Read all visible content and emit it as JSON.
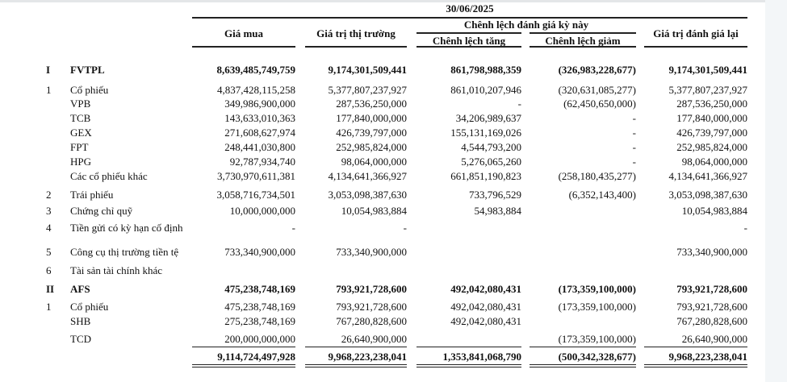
{
  "header": {
    "date": "30/06/2025",
    "col_purchase": "Giá mua",
    "col_market": "Giá trị thị trường",
    "col_diff_group": "Chênh lệch đánh giá kỳ này",
    "col_increase": "Chênh lệch tăng",
    "col_decrease": "Chênh lệch giảm",
    "col_revalued": "Giá trị đánh giá lại"
  },
  "rows": [
    {
      "no": "I",
      "name": "FVTPL",
      "bold": true,
      "values": [
        "8,639,485,749,759",
        "9,174,301,509,441",
        "861,798,988,359",
        "(326,983,228,677)",
        "9,174,301,509,441"
      ]
    },
    {
      "no": "1",
      "name": "Cổ phiếu",
      "values": [
        "4,837,428,115,258",
        "5,377,807,237,927",
        "861,010,207,946",
        "(320,631,085,277)",
        "5,377,807,237,927"
      ]
    },
    {
      "no": "",
      "name": "VPB",
      "values": [
        "349,986,900,000",
        "287,536,250,000",
        "-",
        "(62,450,650,000)",
        "287,536,250,000"
      ]
    },
    {
      "no": "",
      "name": "TCB",
      "values": [
        "143,633,010,363",
        "177,840,000,000",
        "34,206,989,637",
        "-",
        "177,840,000,000"
      ]
    },
    {
      "no": "",
      "name": "GEX",
      "values": [
        "271,608,627,974",
        "426,739,797,000",
        "155,131,169,026",
        "-",
        "426,739,797,000"
      ]
    },
    {
      "no": "",
      "name": "FPT",
      "values": [
        "248,441,030,800",
        "252,985,824,000",
        "4,544,793,200",
        "-",
        "252,985,824,000"
      ]
    },
    {
      "no": "",
      "name": "HPG",
      "values": [
        "92,787,934,740",
        "98,064,000,000",
        "5,276,065,260",
        "-",
        "98,064,000,000"
      ]
    },
    {
      "no": "",
      "name": "Các cổ phiếu khác",
      "values": [
        "3,730,970,611,381",
        "4,134,641,366,927",
        "661,851,190,823",
        "(258,180,435,277)",
        "4,134,641,366,927"
      ]
    },
    {
      "no": "2",
      "name": "Trái phiếu",
      "values": [
        "3,058,716,734,501",
        "3,053,098,387,630",
        "733,796,529",
        "(6,352,143,400)",
        "3,053,098,387,630"
      ]
    },
    {
      "no": "3",
      "name": "Chứng chỉ quỹ",
      "values": [
        "10,000,000,000",
        "10,054,983,884",
        "54,983,884",
        "",
        "10,054,983,884"
      ]
    },
    {
      "no": "4",
      "name": "Tiền gửi có kỳ hạn cố định",
      "values": [
        "-",
        "-",
        "",
        "",
        "-"
      ]
    },
    {
      "no": "5",
      "name": "Công cụ thị trường tiền tệ",
      "values": [
        "733,340,900,000",
        "733,340,900,000",
        "",
        "",
        "733,340,900,000"
      ]
    },
    {
      "no": "6",
      "name": "Tài sản tài chính khác",
      "values": [
        "",
        "",
        "",
        "",
        ""
      ]
    },
    {
      "no": "II",
      "name": "AFS",
      "bold": true,
      "values": [
        "475,238,748,169",
        "793,921,728,600",
        "492,042,080,431",
        "(173,359,100,000)",
        "793,921,728,600"
      ]
    },
    {
      "no": "1",
      "name": "Cổ phiếu",
      "values": [
        "475,238,748,169",
        "793,921,728,600",
        "492,042,080,431",
        "(173,359,100,000)",
        "793,921,728,600"
      ]
    },
    {
      "no": "",
      "name": "SHB",
      "values": [
        "275,238,748,169",
        "767,280,828,600",
        "492,042,080,431",
        "",
        "767,280,828,600"
      ]
    },
    {
      "no": "",
      "name": "TCD",
      "values": [
        "200,000,000,000",
        "26,640,900,000",
        "",
        "(173,359,100,000)",
        "26,640,900,000"
      ]
    }
  ],
  "total": {
    "values": [
      "9,114,724,497,928",
      "9,968,223,238,041",
      "1,353,841,068,790",
      "(500,342,328,677)",
      "9,968,223,238,041"
    ]
  }
}
